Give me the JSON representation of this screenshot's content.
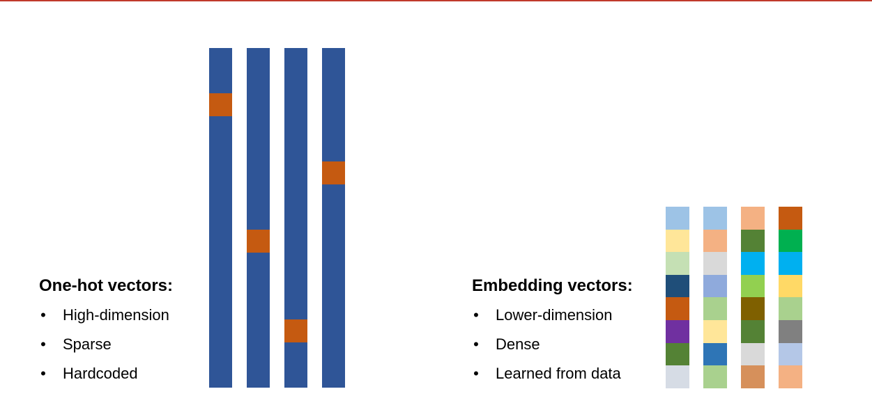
{
  "colors": {
    "rule": "#c0392b",
    "onehot_off": "#2f5597",
    "onehot_on": "#c55a11"
  },
  "onehot": {
    "heading": "One-hot vectors:",
    "bullets": [
      "High-dimension",
      "Sparse",
      "Hardcoded"
    ],
    "vectors": [
      {
        "hot_fraction": 0.133
      },
      {
        "hot_fraction": 0.535
      },
      {
        "hot_fraction": 0.8
      },
      {
        "hot_fraction": 0.333
      }
    ]
  },
  "embedding": {
    "heading": "Embedding vectors:",
    "bullets": [
      "Lower-dimension",
      "Dense",
      "Learned from data"
    ],
    "vectors": [
      {
        "cells": [
          "#9dc3e6",
          "#ffe699",
          "#c5e0b4",
          "#1f4e79",
          "#c55a11",
          "#7030a0",
          "#548235",
          "#d6dce5"
        ]
      },
      {
        "cells": [
          "#9dc3e6",
          "#f4b183",
          "#d9d9d9",
          "#8faadc",
          "#a9d18e",
          "#ffe699",
          "#2e75b6",
          "#a9d18e"
        ]
      },
      {
        "cells": [
          "#f4b183",
          "#548235",
          "#00b0f0",
          "#92d050",
          "#7f6000",
          "#548235",
          "#d9d9d9",
          "#d6905b"
        ]
      },
      {
        "cells": [
          "#c55a11",
          "#00b050",
          "#00b0f0",
          "#ffd966",
          "#a9d18e",
          "#808080",
          "#b4c7e7",
          "#f4b183"
        ]
      }
    ]
  }
}
